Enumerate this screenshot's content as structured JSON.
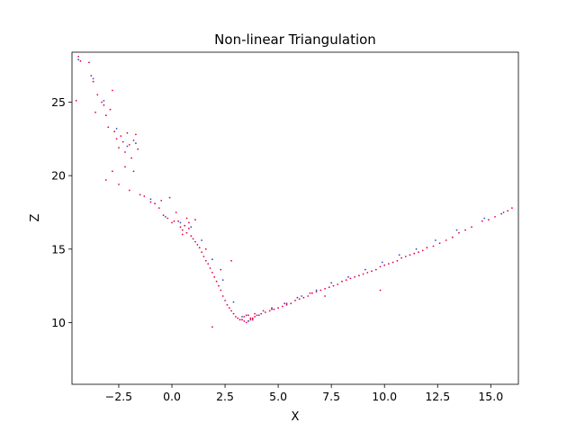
{
  "chart_data": {
    "type": "scatter",
    "title": "Non-linear Triangulation",
    "xlabel": "X",
    "ylabel": "Z",
    "xlim": [
      -4.7,
      16.3
    ],
    "ylim": [
      5.8,
      28.4
    ],
    "xticks": [
      -2.5,
      0.0,
      2.5,
      5.0,
      7.5,
      10.0,
      12.5,
      15.0
    ],
    "xtick_labels": [
      "−2.5",
      "0.0",
      "2.5",
      "5.0",
      "7.5",
      "10.0",
      "12.5",
      "15.0"
    ],
    "yticks": [
      10,
      15,
      20,
      25
    ],
    "ytick_labels": [
      "10",
      "15",
      "20",
      "25"
    ],
    "grid": false,
    "legend": "none",
    "colors": {
      "series_a": "#2a4bd7",
      "series_b": "#e6004c"
    },
    "series": [
      {
        "color": "#e6004c",
        "x": [
          -4.5,
          -4.3,
          -4.4,
          -3.9,
          -3.8,
          -3.7,
          -3.6,
          -3.5,
          -3.3,
          -3.2,
          -3.1,
          -3.0,
          -2.9,
          -2.8,
          -2.7,
          -2.6,
          -2.5,
          -2.4,
          -2.3,
          -2.2,
          -2.1,
          -2.0,
          -1.9,
          -1.8,
          -1.7,
          -1.6,
          -1.8,
          -2.2,
          -2.8,
          -3.1,
          -2.5,
          -2.0,
          -1.5,
          -1.3,
          -1.0,
          -0.8,
          -0.6,
          -0.4,
          -0.2,
          0.0,
          0.1,
          0.3,
          0.4,
          0.5,
          0.6,
          0.7,
          0.8,
          0.9,
          1.0,
          1.1,
          1.2,
          1.3,
          1.4,
          1.5,
          1.6,
          1.7,
          1.8,
          1.9,
          2.0,
          2.1,
          2.2,
          2.3,
          2.4,
          2.5,
          2.6,
          2.7,
          2.8,
          2.9,
          3.0,
          3.1,
          3.2,
          3.3,
          3.4,
          3.5,
          3.6,
          3.7,
          3.8,
          3.9,
          4.0,
          4.2,
          4.4,
          4.6,
          4.8,
          5.0,
          5.2,
          5.4,
          5.6,
          5.8,
          6.0,
          6.2,
          6.4,
          6.6,
          6.8,
          7.0,
          7.2,
          7.4,
          7.6,
          7.8,
          8.0,
          8.2,
          8.4,
          8.6,
          8.8,
          9.0,
          9.2,
          9.4,
          9.6,
          9.8,
          10.0,
          10.2,
          10.4,
          10.6,
          10.8,
          11.0,
          11.2,
          11.4,
          11.6,
          11.8,
          12.0,
          12.3,
          12.6,
          12.9,
          13.2,
          13.5,
          13.8,
          14.1,
          14.6,
          14.9,
          15.2,
          15.5,
          15.8,
          16.0,
          1.9,
          7.2,
          9.8,
          3.6,
          3.8,
          3.4,
          3.7,
          3.5,
          3.9,
          4.3,
          4.7,
          5.3,
          5.9,
          6.5,
          0.7,
          0.8,
          1.1,
          0.5,
          1.6,
          2.8,
          2.3,
          -0.5,
          -0.1,
          0.2
        ],
        "y": [
          25.1,
          27.8,
          28.1,
          27.7,
          26.8,
          26.4,
          24.3,
          25.5,
          25.0,
          24.8,
          24.1,
          23.3,
          24.5,
          25.8,
          23.0,
          22.5,
          21.9,
          22.7,
          22.3,
          21.6,
          22.9,
          22.1,
          21.2,
          22.4,
          22.8,
          21.8,
          20.3,
          20.6,
          20.3,
          19.7,
          19.4,
          19.0,
          18.7,
          18.6,
          18.2,
          18.1,
          17.8,
          17.3,
          17.1,
          16.8,
          16.9,
          16.9,
          16.5,
          16.3,
          16.6,
          16.1,
          16.4,
          15.9,
          15.7,
          15.5,
          15.3,
          15.1,
          14.8,
          14.5,
          14.2,
          14.0,
          13.7,
          13.4,
          13.1,
          12.8,
          12.5,
          12.2,
          11.8,
          11.5,
          11.2,
          11.0,
          10.8,
          10.6,
          10.4,
          10.3,
          10.2,
          10.2,
          10.1,
          10.0,
          10.1,
          10.2,
          10.3,
          10.4,
          10.5,
          10.6,
          10.7,
          10.8,
          10.9,
          11.0,
          11.1,
          11.2,
          11.3,
          11.5,
          11.6,
          11.7,
          11.8,
          12.0,
          12.1,
          12.2,
          12.3,
          12.4,
          12.5,
          12.6,
          12.8,
          12.9,
          13.0,
          13.1,
          13.2,
          13.3,
          13.4,
          13.5,
          13.6,
          13.8,
          13.9,
          14.0,
          14.1,
          14.2,
          14.4,
          14.5,
          14.6,
          14.7,
          14.8,
          14.9,
          15.1,
          15.2,
          15.4,
          15.6,
          15.8,
          16.1,
          16.3,
          16.5,
          16.9,
          17.0,
          17.2,
          17.4,
          17.6,
          17.8,
          9.7,
          11.8,
          12.2,
          10.5,
          10.2,
          10.4,
          10.3,
          10.5,
          10.6,
          10.8,
          11.0,
          11.3,
          11.7,
          12.0,
          17.1,
          16.8,
          17.0,
          16.0,
          15.0,
          14.2,
          13.6,
          18.3,
          18.5,
          17.5
        ]
      },
      {
        "color": "#2a4bd7",
        "x": [
          -4.4,
          -3.7,
          -3.2,
          -2.6,
          -2.1,
          -1.7,
          -1.0,
          -0.3,
          0.4,
          0.9,
          1.4,
          1.9,
          2.4,
          2.9,
          3.3,
          3.6,
          4.1,
          4.7,
          5.4,
          6.1,
          6.8,
          7.5,
          8.3,
          9.1,
          9.9,
          10.7,
          11.5,
          12.4,
          13.4,
          14.7,
          15.6
        ],
        "y": [
          27.9,
          26.6,
          25.1,
          23.2,
          22.0,
          22.2,
          18.4,
          17.2,
          16.8,
          16.5,
          15.6,
          14.3,
          12.9,
          11.4,
          10.4,
          10.1,
          10.5,
          10.9,
          11.3,
          11.8,
          12.2,
          12.7,
          13.1,
          13.6,
          14.1,
          14.6,
          15.0,
          15.6,
          16.3,
          17.1,
          17.5
        ]
      }
    ]
  }
}
